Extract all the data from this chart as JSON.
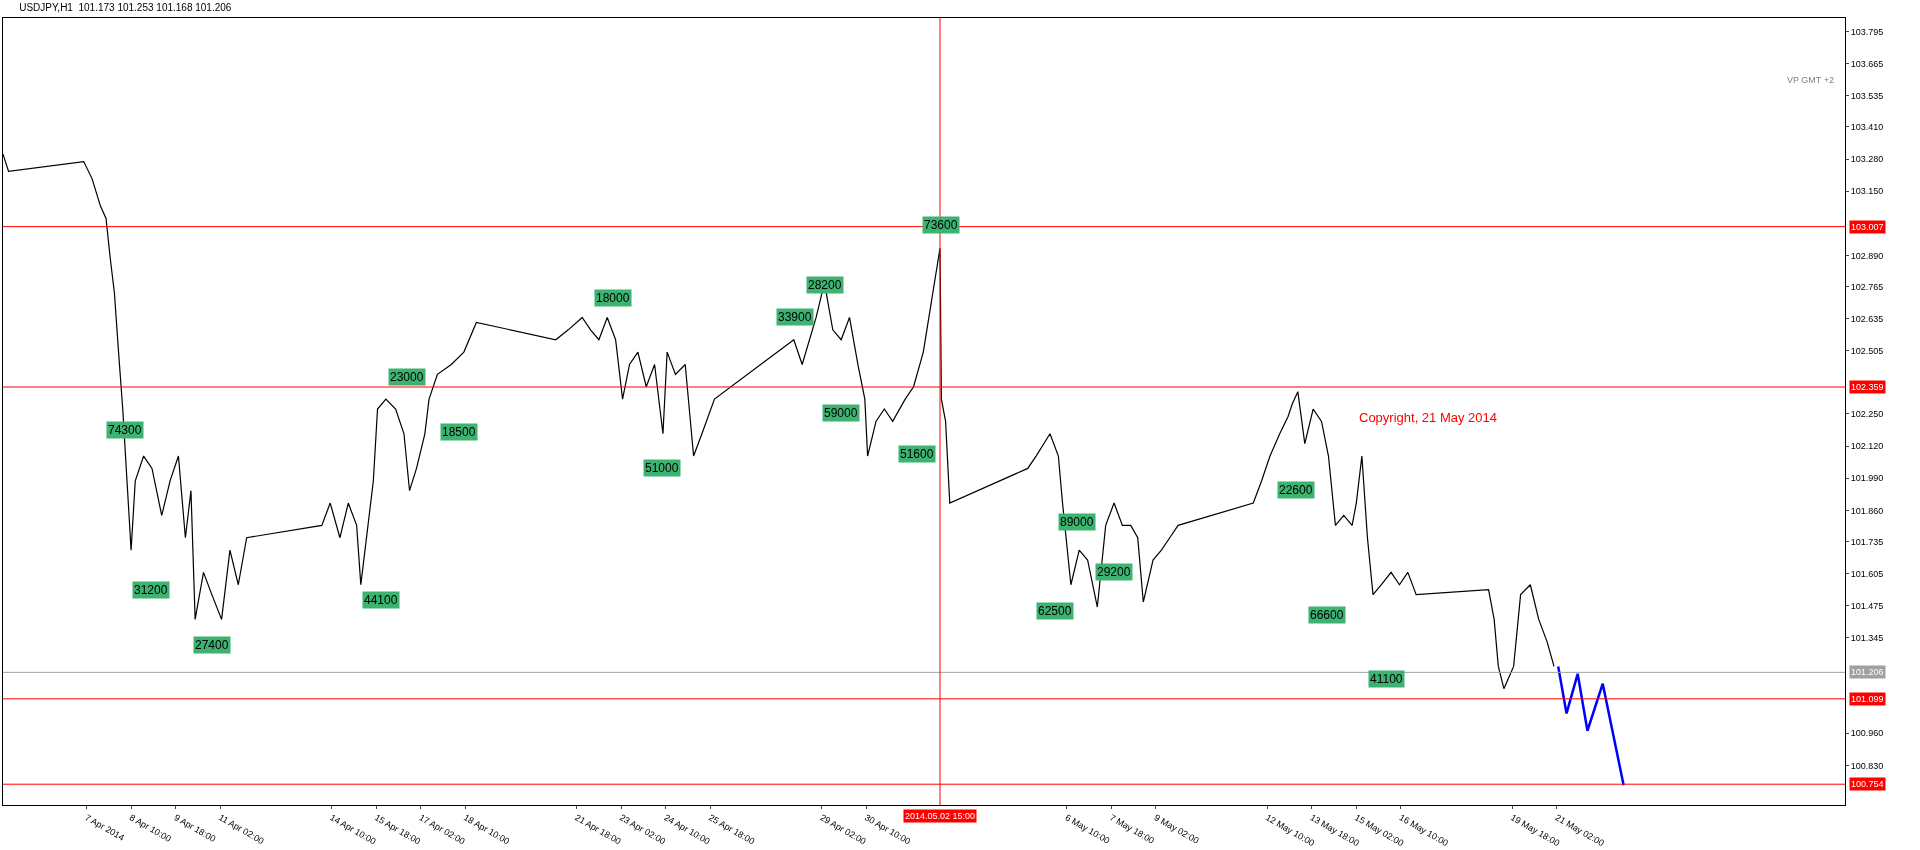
{
  "chart_data": {
    "type": "line",
    "title": "USDJPY,H1  101.173 101.253 101.168 101.206",
    "xlim": [
      "2014-04-04T14:00",
      "2014-05-29T17:00"
    ],
    "ylim": [
      100.67,
      103.85
    ],
    "xticks": [
      {
        "value": "2014-04-07T02:00",
        "label": "7 Apr 2014"
      },
      {
        "value": "2014-04-08T10:00",
        "label": "8 Apr 10:00"
      },
      {
        "value": "2014-04-09T18:00",
        "label": "9 Apr 18:00"
      },
      {
        "value": "2014-04-11T02:00",
        "label": "11 Apr 02:00"
      },
      {
        "value": "2014-04-14T10:00",
        "label": "14 Apr 10:00"
      },
      {
        "value": "2014-04-15T18:00",
        "label": "15 Apr 18:00"
      },
      {
        "value": "2014-04-17T02:00",
        "label": "17 Apr 02:00"
      },
      {
        "value": "2014-04-18T10:00",
        "label": "18 Apr 10:00"
      },
      {
        "value": "2014-04-21T18:00",
        "label": "21 Apr 18:00"
      },
      {
        "value": "2014-04-23T02:00",
        "label": "23 Apr 02:00"
      },
      {
        "value": "2014-04-24T10:00",
        "label": "24 Apr 10:00"
      },
      {
        "value": "2014-04-25T18:00",
        "label": "25 Apr 18:00"
      },
      {
        "value": "2014-04-29T02:00",
        "label": "29 Apr 02:00"
      },
      {
        "value": "2014-04-30T10:00",
        "label": "30 Apr 10:00"
      },
      {
        "value": "2014-05-06T10:00",
        "label": "6 May 10:00"
      },
      {
        "value": "2014-05-07T18:00",
        "label": "7 May 18:00"
      },
      {
        "value": "2014-05-09T02:00",
        "label": "9 May 02:00"
      },
      {
        "value": "2014-05-12T10:00",
        "label": "12 May 10:00"
      },
      {
        "value": "2014-05-13T18:00",
        "label": "13 May 18:00"
      },
      {
        "value": "2014-05-15T02:00",
        "label": "15 May 02:00"
      },
      {
        "value": "2014-05-16T10:00",
        "label": "16 May 10:00"
      },
      {
        "value": "2014-05-19T18:00",
        "label": "19 May 18:00"
      },
      {
        "value": "2014-05-21T02:00",
        "label": "21 May 02:00"
      }
    ],
    "yticks": [
      {
        "value": 103.795,
        "label": "103.795"
      },
      {
        "value": 103.665,
        "label": "103.665"
      },
      {
        "value": 103.535,
        "label": "103.535"
      },
      {
        "value": 103.41,
        "label": "103.410"
      },
      {
        "value": 103.28,
        "label": "103.280"
      },
      {
        "value": 103.15,
        "label": "103.150"
      },
      {
        "value": 102.89,
        "label": "102.890"
      },
      {
        "value": 102.765,
        "label": "102.765"
      },
      {
        "value": 102.635,
        "label": "102.635"
      },
      {
        "value": 102.505,
        "label": "102.505"
      },
      {
        "value": 102.25,
        "label": "102.250"
      },
      {
        "value": 102.12,
        "label": "102.120"
      },
      {
        "value": 101.99,
        "label": "101.990"
      },
      {
        "value": 101.86,
        "label": "101.860"
      },
      {
        "value": 101.735,
        "label": "101.735"
      },
      {
        "value": 101.605,
        "label": "101.605"
      },
      {
        "value": 101.475,
        "label": "101.475"
      },
      {
        "value": 101.345,
        "label": "101.345"
      },
      {
        "value": 100.96,
        "label": "100.960"
      },
      {
        "value": 100.83,
        "label": "100.830"
      }
    ],
    "marker": "none",
    "line_style": "solid",
    "series": [
      {
        "color": "#000000",
        "x": [
          "2014-04-04T14:00",
          "2014-04-04T18:00",
          "2014-04-07T00:00",
          "2014-04-07T06:00",
          "2014-04-07T12:00",
          "2014-04-07T16:00",
          "2014-04-07T19:00",
          "2014-04-07T22:00",
          "2014-04-08T01:00",
          "2014-04-08T04:00",
          "2014-04-08T06:00",
          "2014-04-08T08:00",
          "2014-04-08T10:00",
          "2014-04-08T13:00",
          "2014-04-08T19:00",
          "2014-04-09T01:00",
          "2014-04-09T08:00",
          "2014-04-09T14:00",
          "2014-04-09T20:00",
          "2014-04-10T01:00",
          "2014-04-10T05:00",
          "2014-04-10T08:00",
          "2014-04-10T14:00",
          "2014-04-10T20:00",
          "2014-04-11T03:00",
          "2014-04-11T09:00",
          "2014-04-11T15:00",
          "2014-04-11T21:00",
          "2014-04-14T03:00",
          "2014-04-14T09:00",
          "2014-04-14T16:00",
          "2014-04-14T22:00",
          "2014-04-15T04:00",
          "2014-04-15T07:00",
          "2014-04-15T10:00",
          "2014-04-15T16:00",
          "2014-04-15T19:00",
          "2014-04-16T01:00",
          "2014-04-16T08:00",
          "2014-04-16T14:00",
          "2014-04-16T18:00",
          "2014-04-16T23:00",
          "2014-04-17T05:00",
          "2014-04-17T08:00",
          "2014-04-17T14:00",
          "2014-04-18T00:00",
          "2014-04-18T09:00",
          "2014-04-18T18:00",
          "2014-04-21T03:00",
          "2014-04-21T12:00",
          "2014-04-21T22:00",
          "2014-04-22T04:00",
          "2014-04-22T10:00",
          "2014-04-22T16:00",
          "2014-04-22T22:00",
          "2014-04-23T03:00",
          "2014-04-23T08:00",
          "2014-04-23T14:00",
          "2014-04-23T20:00",
          "2014-04-24T02:00",
          "2014-04-24T08:00",
          "2014-04-24T11:00",
          "2014-04-24T17:00",
          "2014-04-25T00:00",
          "2014-04-25T06:00",
          "2014-04-25T12:00",
          "2014-04-25T21:00",
          "2014-04-28T06:00",
          "2014-04-28T12:00",
          "2014-04-28T22:00",
          "2014-04-29T04:00",
          "2014-04-29T10:00",
          "2014-04-29T16:00",
          "2014-04-29T22:00",
          "2014-04-30T04:00",
          "2014-04-30T09:00",
          "2014-04-30T11:00",
          "2014-04-30T17:00",
          "2014-04-30T23:00",
          "2014-05-01T05:00",
          "2014-05-01T14:00",
          "2014-05-01T20:00",
          "2014-05-02T03:00",
          "2014-05-02T15:00",
          "2014-05-02T16:00",
          "2014-05-02T19:00",
          "2014-05-02T22:00",
          "2014-05-05T06:00",
          "2014-05-05T12:00",
          "2014-05-05T22:00",
          "2014-05-06T04:00",
          "2014-05-06T07:00",
          "2014-05-06T13:00",
          "2014-05-06T19:00",
          "2014-05-07T01:00",
          "2014-05-07T08:00",
          "2014-05-07T14:00",
          "2014-05-07T20:00",
          "2014-05-08T02:00",
          "2014-05-08T08:00",
          "2014-05-08T13:00",
          "2014-05-08T17:00",
          "2014-05-09T00:00",
          "2014-05-09T06:00",
          "2014-05-09T12:00",
          "2014-05-09T18:00",
          "2014-05-12T00:00",
          "2014-05-12T06:00",
          "2014-05-12T12:00",
          "2014-05-12T19:00",
          "2014-05-13T01:00",
          "2014-05-13T04:00",
          "2014-05-13T08:00",
          "2014-05-13T13:00",
          "2014-05-13T19:00",
          "2014-05-14T01:00",
          "2014-05-14T06:00",
          "2014-05-14T11:00",
          "2014-05-14T17:00",
          "2014-05-14T23:00",
          "2014-05-15T02:00",
          "2014-05-15T06:00",
          "2014-05-15T10:00",
          "2014-05-15T14:00",
          "2014-05-15T20:00",
          "2014-05-16T03:00",
          "2014-05-16T09:00",
          "2014-05-16T15:00",
          "2014-05-16T21:00",
          "2014-05-19T01:00",
          "2014-05-19T05:00",
          "2014-05-19T08:00",
          "2014-05-19T12:00",
          "2014-05-19T19:00",
          "2014-05-20T00:00",
          "2014-05-20T07:00",
          "2014-05-20T13:00",
          "2014-05-20T19:00",
          "2014-05-21T00:00"
        ],
        "values": [
          103.3,
          103.23,
          103.27,
          103.2,
          103.09,
          103.04,
          102.88,
          102.74,
          102.5,
          102.27,
          102.08,
          101.89,
          101.7,
          101.98,
          102.08,
          102.03,
          101.84,
          101.98,
          102.08,
          101.75,
          101.94,
          101.42,
          101.61,
          101.52,
          101.42,
          101.7,
          101.56,
          101.75,
          101.8,
          101.89,
          101.75,
          101.89,
          101.8,
          101.56,
          101.7,
          101.98,
          102.27,
          102.31,
          102.27,
          102.17,
          101.94,
          102.03,
          102.17,
          102.31,
          102.41,
          102.45,
          102.5,
          102.62,
          102.55,
          102.59,
          102.64,
          102.59,
          102.55,
          102.64,
          102.55,
          102.31,
          102.45,
          102.5,
          102.36,
          102.45,
          102.17,
          102.5,
          102.41,
          102.45,
          102.08,
          102.17,
          102.31,
          102.55,
          102.45,
          102.64,
          102.78,
          102.59,
          102.55,
          102.64,
          102.45,
          102.31,
          102.08,
          102.22,
          102.27,
          102.22,
          102.31,
          102.36,
          102.5,
          102.92,
          102.31,
          102.22,
          101.89,
          102.03,
          102.08,
          102.17,
          102.08,
          101.89,
          101.56,
          101.7,
          101.66,
          101.47,
          101.8,
          101.89,
          101.8,
          101.8,
          101.75,
          101.49,
          101.66,
          101.7,
          101.75,
          101.8,
          101.89,
          101.98,
          102.08,
          102.17,
          102.24,
          102.29,
          102.34,
          102.13,
          102.27,
          102.22,
          102.08,
          101.8,
          101.84,
          101.8,
          101.89,
          102.08,
          101.75,
          101.52,
          101.56,
          101.61,
          101.56,
          101.61,
          101.52,
          101.54,
          101.42,
          101.23,
          101.14,
          101.23,
          101.52,
          101.56,
          101.42,
          101.33,
          101.23
        ]
      },
      {
        "color": "#0000ff",
        "x": [
          "2014-05-21T03:00",
          "2014-05-21T09:00",
          "2014-05-21T17:00",
          "2014-05-22T00:00",
          "2014-05-22T11:00",
          "2014-05-23T02:00"
        ],
        "values": [
          101.23,
          101.04,
          101.2,
          100.97,
          101.16,
          100.75
        ]
      }
    ],
    "ref_lines": [
      {
        "axis": "y",
        "value": 103.007,
        "label": "103.007",
        "color": "#ff0000"
      },
      {
        "axis": "y",
        "value": 102.359,
        "label": "102.359",
        "color": "#ff0000"
      },
      {
        "axis": "y",
        "value": 101.206,
        "label": "101.206",
        "color": "#a0a0a0"
      },
      {
        "axis": "y",
        "value": 101.099,
        "label": "101.099",
        "color": "#ff0000"
      },
      {
        "axis": "y",
        "value": 100.754,
        "label": "100.754",
        "color": "#ff0000"
      },
      {
        "axis": "x",
        "value": "2014-05-02T15:00",
        "label": "2014.05.02 15:00",
        "color": "#ff0000"
      }
    ],
    "annotations": [
      "VP GMT +2",
      "Copyright, 21 May 2014",
      "74300",
      "31200",
      "27400",
      "44100",
      "23000",
      "18500",
      "18000",
      "51000",
      "33900",
      "28200",
      "59000",
      "73600",
      "51600",
      "89000",
      "29200",
      "62500",
      "22600",
      "66600",
      "41100"
    ]
  }
}
